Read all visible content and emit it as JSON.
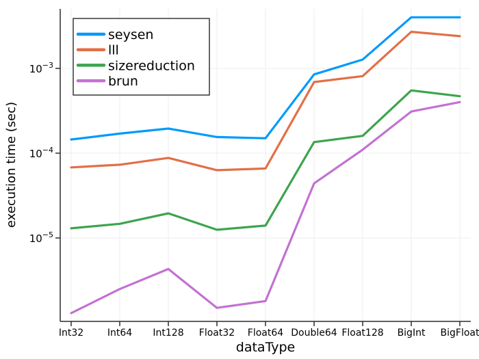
{
  "figure": {
    "colors": {
      "background": "#ffffff",
      "grid": "#ececec",
      "axis": "#2c2c2c",
      "legend_border": "#26282b",
      "text": "#000000"
    }
  },
  "chart_data": {
    "type": "line",
    "title": "",
    "xlabel": "dataType",
    "ylabel": "execution time (sec)",
    "yscale": "log10",
    "ylim": [
      1e-06,
      0.005
    ],
    "grid": true,
    "legend_position": "top-left",
    "categories": [
      "Int32",
      "Int64",
      "Int128",
      "Float32",
      "Float64",
      "Double64",
      "Float128",
      "BigInt",
      "BigFloat"
    ],
    "ytick_exponents": [
      -3,
      -4,
      -5
    ],
    "series": [
      {
        "name": "seysen",
        "color": "#009af9",
        "values": [
          0.000145,
          0.00017,
          0.000195,
          0.000155,
          0.00015,
          0.00085,
          0.00127,
          0.004,
          0.004
        ]
      },
      {
        "name": "lll",
        "color": "#e26f46",
        "values": [
          6.8e-05,
          7.3e-05,
          8.8e-05,
          6.3e-05,
          6.6e-05,
          0.00069,
          0.00081,
          0.0027,
          0.0024
        ]
      },
      {
        "name": "sizereduction",
        "color": "#3da44d",
        "values": [
          1.3e-05,
          1.47e-05,
          1.95e-05,
          1.25e-05,
          1.4e-05,
          0.000135,
          0.00016,
          0.00055,
          0.00047
        ]
      },
      {
        "name": "brun",
        "color": "#c271d2",
        "values": [
          1.3e-06,
          2.5e-06,
          4.3e-06,
          1.5e-06,
          1.8e-06,
          4.4e-05,
          0.00011,
          0.00031,
          0.0004
        ]
      }
    ]
  }
}
